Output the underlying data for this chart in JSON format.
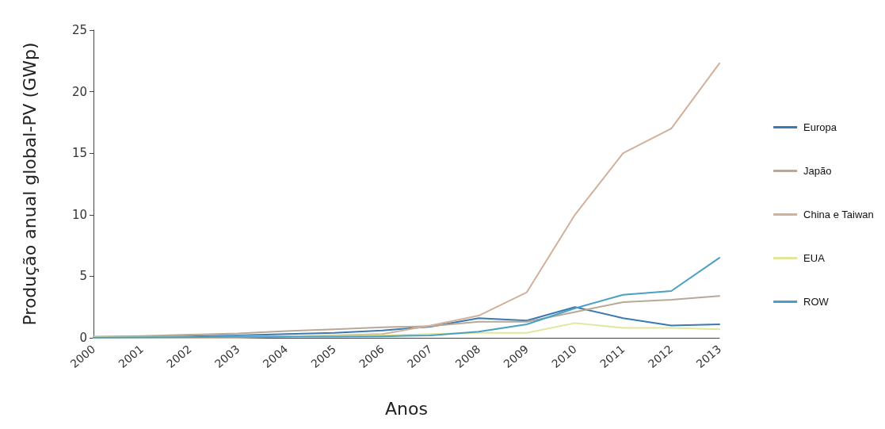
{
  "chart_data": {
    "type": "line",
    "xlabel": "Anos",
    "ylabel": "Produção anual global-PV (GWp)",
    "categories": [
      "2000",
      "2001",
      "2002",
      "2003",
      "2004",
      "2005",
      "2006",
      "2007",
      "2008",
      "2009",
      "2010",
      "2011",
      "2012",
      "2013"
    ],
    "ylim": [
      0,
      25
    ],
    "yticks": [
      0,
      5,
      10,
      15,
      20,
      25
    ],
    "grid": false,
    "legend": "right",
    "marker": "none",
    "series": [
      {
        "name": "Europa",
        "color": "#3a7ab0",
        "values": [
          0.05,
          0.08,
          0.12,
          0.2,
          0.3,
          0.4,
          0.6,
          0.9,
          1.6,
          1.4,
          2.5,
          1.6,
          1.0,
          1.1
        ]
      },
      {
        "name": "Japão",
        "color": "#b8a898",
        "values": [
          0.1,
          0.15,
          0.25,
          0.35,
          0.55,
          0.7,
          0.85,
          0.95,
          1.3,
          1.3,
          2.1,
          2.9,
          3.1,
          3.4
        ]
      },
      {
        "name": "China e Taiwan",
        "color": "#d2b09a",
        "values": [
          0,
          0,
          0,
          0,
          null,
          null,
          0.3,
          1.0,
          1.8,
          3.7,
          10,
          15,
          17,
          22.3
        ]
      },
      {
        "name": "EUA",
        "color": "#e2e69a",
        "values": [
          0.05,
          null,
          0.05,
          0.1,
          null,
          null,
          0.2,
          0.3,
          0.4,
          0.4,
          1.2,
          0.8,
          0.8,
          0.7
        ]
      },
      {
        "name": "ROW",
        "color": "#4aa0c4",
        "values": [
          0.02,
          0.03,
          0.05,
          0.08,
          0.1,
          0.1,
          0.12,
          0.2,
          0.5,
          1.1,
          2.4,
          3.5,
          3.8,
          6.5
        ]
      }
    ]
  }
}
